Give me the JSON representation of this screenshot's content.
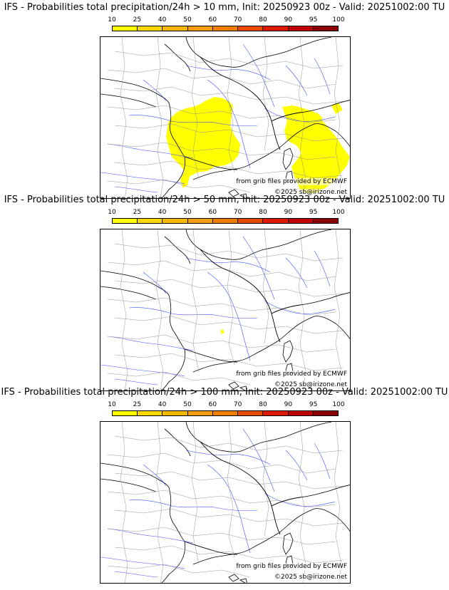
{
  "colorbar": {
    "ticks": [
      "10",
      "25",
      "40",
      "50",
      "60",
      "70",
      "80",
      "90",
      "95",
      "100"
    ],
    "colors": [
      "#ffff00",
      "#ffd700",
      "#f5b800",
      "#f39c12",
      "#ef7d00",
      "#e84b00",
      "#dd1a00",
      "#c00000",
      "#8b0000",
      "#5a0000"
    ]
  },
  "panels": [
    {
      "title": "IFS - Probabilities total precipitation/24h > 10 mm, Init: 20250923 00z - Valid: 20251002:00 TU",
      "credit_line1": "from grib files provided by ECMWF",
      "credit_line2": "©2025 sb@irizone.net",
      "precip_color": "#ffff00"
    },
    {
      "title": "IFS - Probabilities total precipitation/24h > 50 mm, Init: 20250923 00z - Valid: 20251002:00 TU",
      "credit_line1": "from grib files provided by ECMWF",
      "credit_line2": "©2025 sb@irizone.net",
      "precip_color": "#ffff00"
    },
    {
      "title": "IFS - Probabilities total precipitation/24h > 100 mm, Init: 20250923 00z - Valid: 20251002:00 TU",
      "credit_line1": "from grib files provided by ECMWF",
      "credit_line2": "©2025 sb@irizone.net",
      "precip_color": "#ffff00"
    }
  ]
}
